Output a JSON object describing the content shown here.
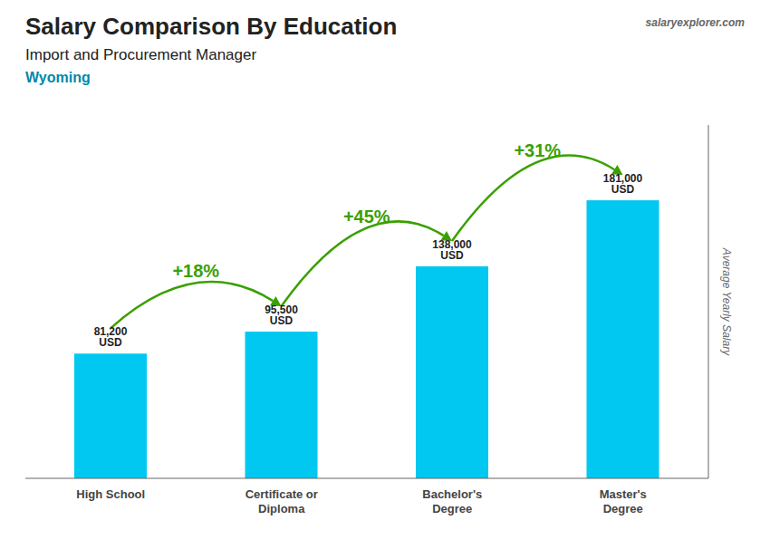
{
  "chart_data": {
    "type": "bar",
    "title": "Salary Comparison By Education",
    "subtitle": "Import and Procurement Manager",
    "location": "Wyoming",
    "source": "salaryexplorer.com",
    "ylabel": "Average Yearly Salary",
    "categories": [
      "High School",
      "Certificate or\nDiploma",
      "Bachelor's\nDegree",
      "Master's\nDegree"
    ],
    "values": [
      81200,
      95500,
      138000,
      181000
    ],
    "value_labels": [
      "81,200 USD",
      "95,500 USD",
      "138,000 USD",
      "181,000 USD"
    ],
    "data_labels": true,
    "annotations": [
      "+18%",
      "+45%",
      "+31%"
    ],
    "color": "#00c8f0",
    "ylim": [
      0,
      230000
    ],
    "grid": false,
    "tick_labels": "x"
  }
}
